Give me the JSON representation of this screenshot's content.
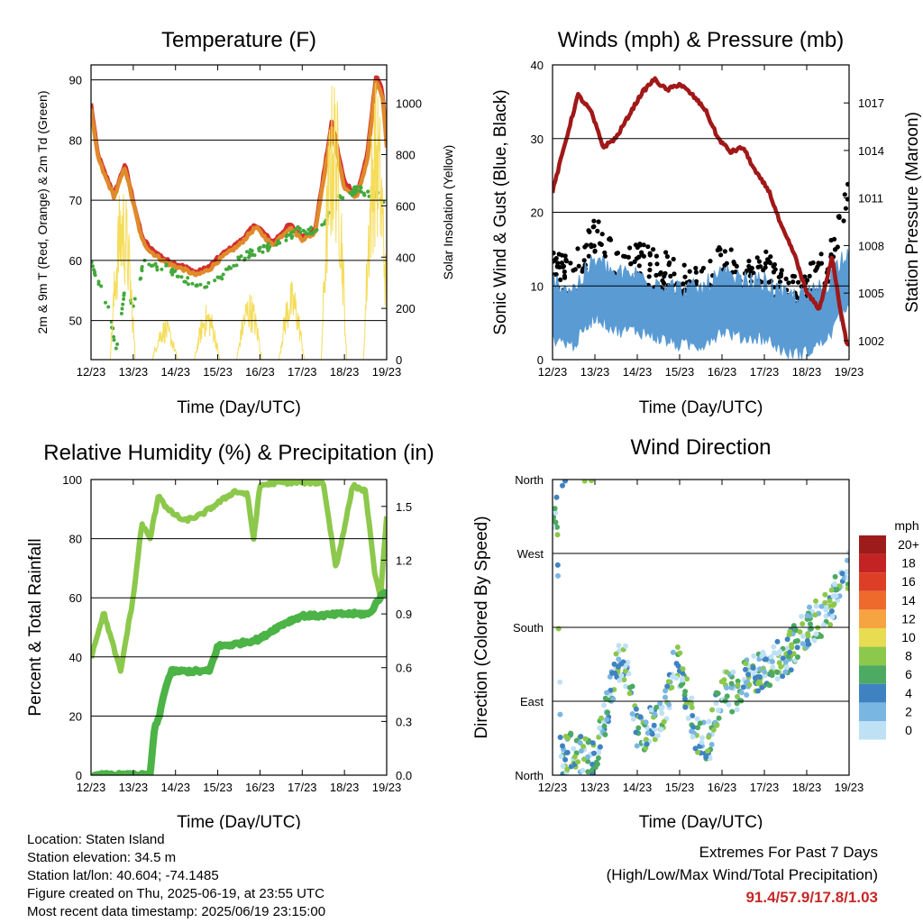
{
  "colors": {
    "temp_2m": "#d32f2f",
    "temp_9m": "#e08a2a",
    "dewpoint": "#44a83c",
    "solar": "#f5dc5a",
    "gust": "#000000",
    "wind": "#5a9bd4",
    "pressure": "#a01818",
    "rh": "#8cc84b",
    "precip": "#4cb347",
    "extremes": "#c62828"
  },
  "chart_data": [
    {
      "id": "temperature",
      "type": "line",
      "title": "Temperature (F)",
      "xlabel": "Time (Day/UTC)",
      "ylabel": "2m & 9m T (Red, Orange) & 2m Td (Green)",
      "ylabel_right": "Solar Insolation (Yellow)",
      "x_ticks": [
        "12/23",
        "13/23",
        "14/23",
        "15/23",
        "16/23",
        "17/23",
        "18/23",
        "19/23"
      ],
      "y_ticks": [
        50,
        60,
        70,
        80,
        90
      ],
      "y2_ticks": [
        0,
        200,
        400,
        600,
        800,
        1000
      ],
      "xlim": [
        0,
        7
      ],
      "ylim": [
        43.5,
        92.5
      ],
      "y2lim": [
        0,
        1150
      ],
      "grid": "horizontal",
      "series": [
        {
          "key": "temp_2m",
          "style": "line",
          "x": [
            0,
            0.15,
            0.3,
            0.55,
            0.8,
            1.0,
            1.2,
            1.4,
            1.8,
            2.2,
            2.5,
            2.8,
            3.1,
            3.5,
            3.9,
            4.3,
            4.7,
            5.0,
            5.3,
            5.7,
            6.0,
            6.3,
            6.55,
            6.75,
            6.9,
            7.0
          ],
          "y": [
            86,
            78,
            75,
            71,
            76,
            70,
            64,
            62,
            60,
            59,
            58,
            59,
            61,
            63,
            66,
            63,
            66,
            64,
            65,
            83,
            73,
            71,
            78,
            91,
            88,
            80
          ]
        },
        {
          "key": "temp_9m",
          "style": "line",
          "x": [
            0,
            0.15,
            0.3,
            0.55,
            0.8,
            1.0,
            1.2,
            1.4,
            1.8,
            2.2,
            2.5,
            2.8,
            3.1,
            3.5,
            3.9,
            4.3,
            4.7,
            5.0,
            5.3,
            5.7,
            6.0,
            6.3,
            6.55,
            6.75,
            6.9,
            7.0
          ],
          "y": [
            85,
            77.5,
            74.5,
            70.5,
            75.5,
            69.5,
            63.5,
            61.5,
            59.5,
            58.5,
            57.5,
            58.5,
            60.5,
            62.5,
            65.5,
            62.5,
            65.5,
            63.5,
            64.5,
            82,
            72,
            70.5,
            77,
            90,
            87,
            79
          ]
        },
        {
          "key": "dewpoint",
          "style": "dots",
          "x": [
            0,
            0.25,
            0.45,
            0.6,
            0.8,
            1.0,
            1.25,
            1.5,
            1.8,
            2.1,
            2.5,
            2.9,
            3.3,
            3.7,
            4.1,
            4.5,
            4.9,
            5.3,
            5.6,
            5.8,
            6.0,
            6.3,
            6.6,
            6.8,
            7.0
          ],
          "y": [
            60,
            55,
            51,
            45,
            55,
            52,
            60,
            59,
            59,
            57,
            56,
            56,
            59,
            61,
            62,
            63,
            65,
            65,
            67,
            72,
            70,
            72,
            71,
            71,
            68
          ]
        },
        {
          "key": "solar",
          "style": "spikes",
          "x": [
            0.75,
            1.75,
            2.75,
            3.75,
            4.75,
            5.75,
            6.75
          ],
          "y": [
            710,
            160,
            220,
            270,
            310,
            1130,
            1100
          ]
        }
      ]
    },
    {
      "id": "winds",
      "type": "scatter",
      "title": "Winds (mph) & Pressure (mb)",
      "xlabel": "Time (Day/UTC)",
      "ylabel": "Sonic Wind & Gust (Blue, Black)",
      "ylabel_right": "Station Pressure (Maroon)",
      "x_ticks": [
        "12/23",
        "13/23",
        "14/23",
        "15/23",
        "16/23",
        "17/23",
        "18/23",
        "19/23"
      ],
      "y_ticks": [
        0,
        10,
        20,
        30,
        40
      ],
      "y2_ticks": [
        1002,
        1005,
        1008,
        1011,
        1014,
        1017
      ],
      "xlim": [
        0,
        7
      ],
      "ylim": [
        0,
        40
      ],
      "y2lim": [
        1000.8,
        1019.4
      ],
      "grid": "horizontal",
      "series": [
        {
          "key": "gust",
          "style": "dots",
          "x": [
            0,
            0.5,
            1.0,
            1.5,
            2.0,
            2.5,
            3.0,
            3.5,
            4.0,
            4.5,
            5.0,
            5.5,
            6.0,
            6.5,
            6.9
          ],
          "y": [
            12,
            11,
            17,
            12,
            13,
            12,
            11,
            9,
            13,
            11,
            12,
            9,
            10,
            12,
            21
          ]
        },
        {
          "key": "wind",
          "style": "band",
          "x": [
            0,
            0.5,
            1.0,
            1.5,
            2.0,
            2.5,
            3.0,
            3.5,
            4.0,
            4.5,
            5.0,
            5.5,
            6.0,
            6.5,
            6.9
          ],
          "y": [
            6,
            5,
            9,
            7,
            7,
            6,
            5,
            5,
            7,
            6,
            6,
            4,
            4,
            6,
            10
          ]
        },
        {
          "key": "pressure",
          "style": "line",
          "y_axis": "right",
          "x": [
            0,
            0.3,
            0.6,
            0.9,
            1.2,
            1.5,
            1.8,
            2.1,
            2.4,
            2.7,
            3.0,
            3.3,
            3.6,
            3.9,
            4.2,
            4.5,
            4.8,
            5.1,
            5.4,
            5.7,
            6.0,
            6.3,
            6.6,
            6.8,
            6.95
          ],
          "y": [
            1011.4,
            1014.5,
            1017.5,
            1016.5,
            1014.2,
            1014.8,
            1016.2,
            1017.6,
            1018.5,
            1017.8,
            1018.2,
            1017.5,
            1016.6,
            1014.8,
            1013.9,
            1014.2,
            1012.6,
            1011.5,
            1009.2,
            1007.5,
            1005.0,
            1004.0,
            1007.3,
            1003.8,
            1001.8
          ]
        }
      ]
    },
    {
      "id": "humidity",
      "type": "line",
      "title": "Relative Humidity (%) & Precipitation (in)",
      "xlabel": "Time (Day/UTC)",
      "ylabel": "Percent & Total Rainfall",
      "x_ticks": [
        "12/23",
        "13/23",
        "14/23",
        "15/23",
        "16/23",
        "17/23",
        "18/23",
        "19/23"
      ],
      "y_ticks": [
        0,
        20,
        40,
        60,
        80,
        100
      ],
      "y2_ticks": [
        "0.0",
        "0.3",
        "0.6",
        "0.9",
        "1.2",
        "1.5"
      ],
      "xlim": [
        0,
        7
      ],
      "ylim": [
        0,
        100
      ],
      "y2lim": [
        0,
        1.65
      ],
      "grid": "horizontal",
      "series": [
        {
          "key": "rh",
          "style": "line",
          "x": [
            0,
            0.1,
            0.3,
            0.5,
            0.7,
            0.85,
            1.0,
            1.2,
            1.4,
            1.6,
            1.8,
            2.2,
            2.6,
            3.0,
            3.4,
            3.7,
            3.85,
            4.0,
            4.4,
            4.8,
            5.2,
            5.5,
            5.8,
            6.2,
            6.5,
            6.7,
            6.85,
            7.0
          ],
          "y": [
            40,
            45,
            55,
            45,
            35,
            48,
            60,
            85,
            80,
            95,
            90,
            86,
            88,
            92,
            96,
            95,
            80,
            98,
            99,
            99,
            99,
            99,
            70,
            98,
            96,
            70,
            60,
            87
          ]
        },
        {
          "key": "precip",
          "style": "line",
          "y_axis": "right",
          "x": [
            0,
            1.4,
            1.5,
            1.6,
            1.75,
            1.9,
            2.4,
            2.8,
            3.0,
            3.4,
            4.0,
            4.3,
            4.6,
            5.0,
            5.4,
            6.0,
            6.6,
            6.8,
            7.0
          ],
          "y": [
            0.0,
            0.0,
            0.26,
            0.31,
            0.48,
            0.58,
            0.58,
            0.58,
            0.72,
            0.73,
            0.76,
            0.81,
            0.85,
            0.89,
            0.89,
            0.9,
            0.9,
            0.98,
            1.03
          ]
        }
      ]
    },
    {
      "id": "wind_direction",
      "type": "scatter",
      "title": "Wind Direction",
      "xlabel": "Time (Day/UTC)",
      "ylabel": "Direction (Colored By Speed)",
      "x_ticks": [
        "12/23",
        "13/23",
        "14/23",
        "15/23",
        "16/23",
        "17/23",
        "18/23",
        "19/23"
      ],
      "y_ticks": [
        "North",
        "East",
        "South",
        "West",
        "North"
      ],
      "xlim": [
        0,
        7
      ],
      "ylim": [
        0,
        360
      ],
      "grid": "horizontal",
      "legend": {
        "title": "mph",
        "position": "right",
        "labels": [
          "20+",
          "18",
          "16",
          "14",
          "12",
          "10",
          "8",
          "6",
          "4",
          "2",
          "0"
        ],
        "colors": [
          "#9e1b1b",
          "#c42323",
          "#dc3e26",
          "#ed6a2c",
          "#f6a442",
          "#e8dc52",
          "#8cc84b",
          "#4caa62",
          "#3f82c2",
          "#7ab6e2",
          "#bfe1f6"
        ]
      },
      "series": [
        {
          "name": "wind direction",
          "style": "dots",
          "x": [
            0,
            0.1,
            0.2,
            0.4,
            0.8,
            1.0,
            1.2,
            1.5,
            1.7,
            2.0,
            2.3,
            2.6,
            2.9,
            3.1,
            3.4,
            3.7,
            4.0,
            4.3,
            4.6,
            5.0,
            5.3,
            5.6,
            6.0,
            6.3,
            6.6,
            6.8,
            7.0
          ],
          "y": [
            300,
            330,
            15,
            30,
            20,
            20,
            60,
            130,
            140,
            50,
            60,
            70,
            140,
            110,
            50,
            40,
            110,
            100,
            120,
            130,
            140,
            150,
            180,
            190,
            210,
            230,
            250
          ]
        }
      ]
    }
  ],
  "info": {
    "location": "Location: Staten Island",
    "elevation": "Station elevation: 34.5 m",
    "latlon": "Station lat/lon: 40.604; -74.1485",
    "created": "Figure created on Thu, 2025-06-19, at 23:55 UTC",
    "latest": "Most recent data timestamp: 2025/06/19 23:15:00"
  },
  "extremes": {
    "title": "Extremes For Past 7 Days",
    "subtitle": "(High/Low/Max Wind/Total Precipitation)",
    "values": "91.4/57.9/17.8/1.03"
  }
}
